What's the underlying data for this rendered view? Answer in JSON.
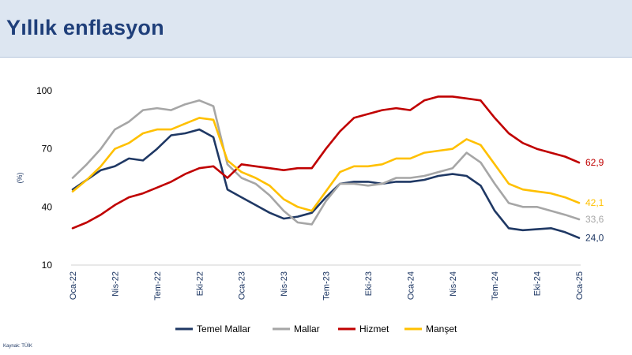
{
  "header": {
    "title": "Yıllık enflasyon"
  },
  "footer": {
    "source": "Kaynak: TÜİK"
  },
  "colors": {
    "title": "#1f3f7a",
    "axis_text": "#1f3864",
    "temel_mallar": "#1f3864",
    "mallar": "#a6a6a6",
    "hizmet": "#c00000",
    "manset": "#ffc000"
  },
  "chart_data": {
    "type": "line",
    "title": "",
    "xlabel": "",
    "ylabel": "(%)",
    "ylim": [
      10,
      100
    ],
    "yticks": [
      10,
      40,
      70,
      100
    ],
    "grid": false,
    "legend_position": "bottom",
    "x_ticklabels": [
      "Oca-22",
      "Nis-22",
      "Tem-22",
      "Eki-22",
      "Oca-23",
      "Nis-23",
      "Tem-23",
      "Eki-23",
      "Oca-24",
      "Nis-24",
      "Tem-24",
      "Eki-24",
      "Oca-25"
    ],
    "x": [
      "Oca-22",
      "Şub-22",
      "Mar-22",
      "Nis-22",
      "May-22",
      "Haz-22",
      "Tem-22",
      "Ağu-22",
      "Eyl-22",
      "Eki-22",
      "Kas-22",
      "Ara-22",
      "Oca-23",
      "Şub-23",
      "Mar-23",
      "Nis-23",
      "May-23",
      "Haz-23",
      "Tem-23",
      "Ağu-23",
      "Eyl-23",
      "Eki-23",
      "Kas-23",
      "Ara-23",
      "Oca-24",
      "Şub-24",
      "Mar-24",
      "Nis-24",
      "May-24",
      "Haz-24",
      "Tem-24",
      "Ağu-24",
      "Eyl-24",
      "Eki-24",
      "Kas-24",
      "Ara-24",
      "Oca-25"
    ],
    "series": [
      {
        "name": "Temel Mallar",
        "color": "#1f3864",
        "values": [
          49,
          54,
          59,
          61,
          65,
          64,
          70,
          77,
          78,
          80,
          76,
          49,
          45,
          41,
          37,
          34,
          35,
          37,
          45,
          52,
          53,
          53,
          52,
          53,
          53,
          54,
          56,
          57,
          56,
          51,
          38,
          29,
          28,
          28.5,
          29,
          27,
          24.0
        ],
        "end_label": "24,0"
      },
      {
        "name": "Mallar",
        "color": "#a6a6a6",
        "values": [
          55,
          62,
          70,
          80,
          84,
          90,
          91,
          90,
          93,
          95,
          92,
          62,
          55,
          52,
          46,
          38,
          32,
          31,
          43,
          52,
          52,
          51,
          52,
          55,
          55,
          56,
          58,
          60,
          68,
          63,
          52,
          42,
          40,
          40,
          38,
          36,
          33.6
        ],
        "end_label": "33,6"
      },
      {
        "name": "Hizmet",
        "color": "#c00000",
        "values": [
          29,
          32,
          36,
          41,
          45,
          47,
          50,
          53,
          57,
          60,
          61,
          55,
          62,
          61,
          60,
          59,
          60,
          60,
          70,
          79,
          86,
          88,
          90,
          91,
          90,
          95,
          97,
          97,
          96,
          95,
          86,
          78,
          73,
          70,
          68,
          66,
          62.9
        ],
        "end_label": "62,9"
      },
      {
        "name": "Manşet",
        "color": "#ffc000",
        "values": [
          48,
          54,
          61,
          70,
          73,
          78,
          80,
          80,
          83,
          86,
          85,
          64,
          58,
          55,
          51,
          44,
          40,
          38,
          48,
          58,
          61,
          61,
          62,
          65,
          65,
          68,
          69,
          70,
          75,
          72,
          62,
          52,
          49,
          48,
          47,
          45,
          42.1
        ],
        "end_label": "42,1"
      }
    ]
  }
}
